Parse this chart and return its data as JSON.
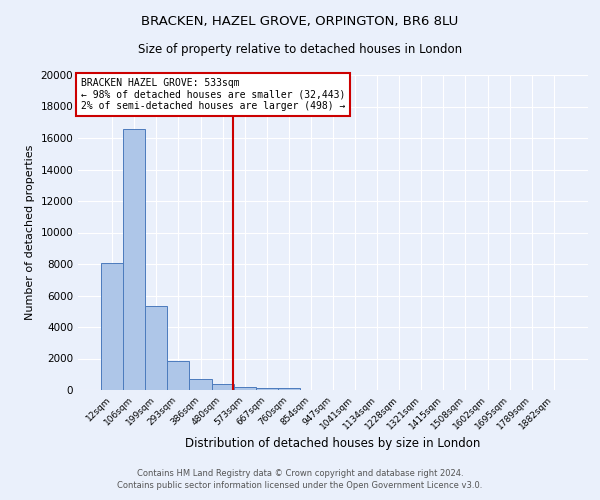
{
  "title1": "BRACKEN, HAZEL GROVE, ORPINGTON, BR6 8LU",
  "title2": "Size of property relative to detached houses in London",
  "xlabel": "Distribution of detached houses by size in London",
  "ylabel": "Number of detached properties",
  "footer1": "Contains HM Land Registry data © Crown copyright and database right 2024.",
  "footer2": "Contains public sector information licensed under the Open Government Licence v3.0.",
  "categories": [
    "12sqm",
    "106sqm",
    "199sqm",
    "293sqm",
    "386sqm",
    "480sqm",
    "573sqm",
    "667sqm",
    "760sqm",
    "854sqm",
    "947sqm",
    "1041sqm",
    "1134sqm",
    "1228sqm",
    "1321sqm",
    "1415sqm",
    "1508sqm",
    "1602sqm",
    "1695sqm",
    "1789sqm",
    "1882sqm"
  ],
  "values": [
    8050,
    16600,
    5350,
    1820,
    700,
    350,
    220,
    150,
    130,
    0,
    0,
    0,
    0,
    0,
    0,
    0,
    0,
    0,
    0,
    0,
    0
  ],
  "bar_color": "#aec6e8",
  "bar_edge_color": "#4c7bbd",
  "vline_x": 5.45,
  "vline_color": "#cc0000",
  "annotation_title": "BRACKEN HAZEL GROVE: 533sqm",
  "annotation_line1": "← 98% of detached houses are smaller (32,443)",
  "annotation_line2": "2% of semi-detached houses are larger (498) →",
  "annotation_box_color": "#ffffff",
  "annotation_box_edge": "#cc0000",
  "ylim": [
    0,
    20000
  ],
  "yticks": [
    0,
    2000,
    4000,
    6000,
    8000,
    10000,
    12000,
    14000,
    16000,
    18000,
    20000
  ],
  "bg_color": "#eaf0fb",
  "grid_color": "#ffffff"
}
